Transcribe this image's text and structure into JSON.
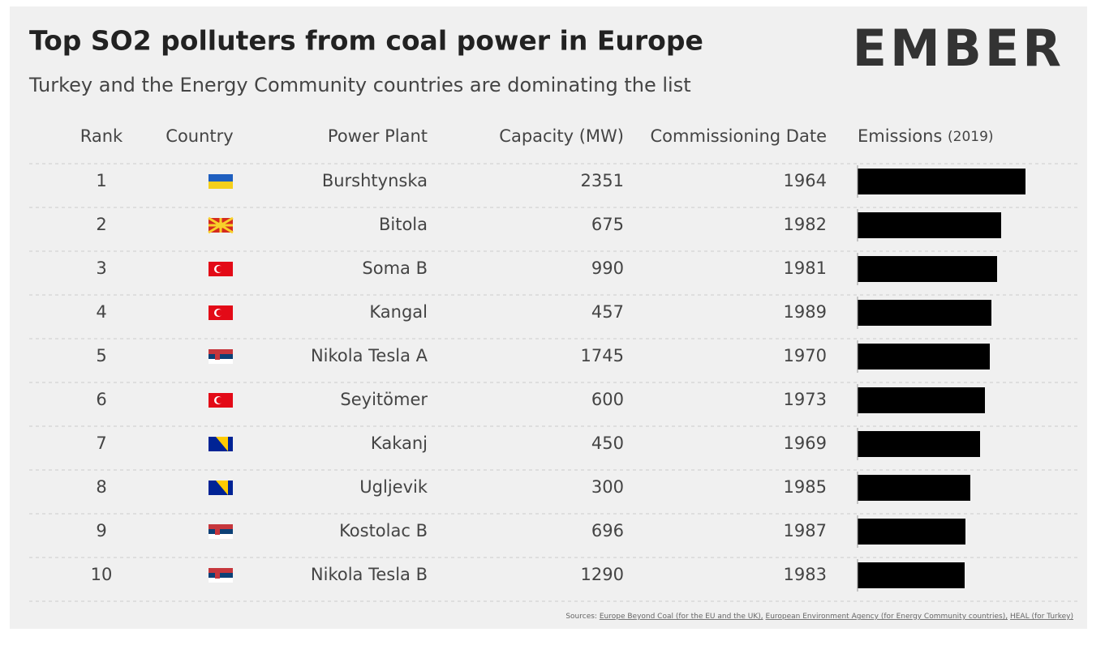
{
  "header": {
    "title": "Top SO2 polluters from coal power in Europe",
    "subtitle": "Turkey and the Energy Community countries are dominating the list",
    "logo": "EMBER"
  },
  "table": {
    "columns": [
      "Rank",
      "Country",
      "Power Plant",
      "Capacity (MW)",
      "Commissioning Date",
      "Emissions",
      "(2019)"
    ],
    "rows": [
      [
        "1",
        "Burshtynska",
        "2351",
        "1964"
      ],
      [
        "2",
        "Bitola",
        "675",
        "1982"
      ],
      [
        "3",
        "Soma B",
        "990",
        "1981"
      ],
      [
        "4",
        "Kangal",
        "457",
        "1989"
      ],
      [
        "5",
        "Nikola Tesla A",
        "1745",
        "1970"
      ],
      [
        "6",
        "Seyitömer",
        "600",
        "1973"
      ],
      [
        "7",
        "Kakanj",
        "450",
        "1969"
      ],
      [
        "8",
        "Ugljevik",
        "300",
        "1985"
      ],
      [
        "9",
        "Kostolac B",
        "696",
        "1987"
      ],
      [
        "10",
        "Nikola Tesla B",
        "1290",
        "1983"
      ]
    ],
    "emissions": [
      207,
      177,
      172,
      165,
      163,
      157,
      151,
      139,
      133,
      132
    ]
  },
  "footer": {
    "prefix": "Sources:",
    "sources": [
      "Europe Beyond Coal (for the EU and the UK),",
      "European Environment Agency (for Energy Community countries),",
      "HEAL (for Turkey)"
    ]
  }
}
